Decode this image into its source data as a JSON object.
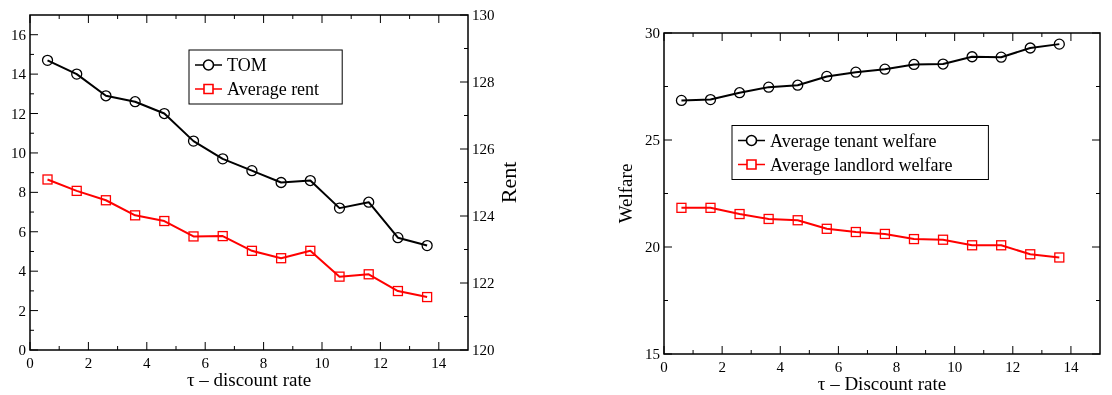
{
  "chart_data": [
    {
      "type": "line",
      "xlabel": "τ – discount rate",
      "y2label": "Rent",
      "x": [
        0.6,
        1.6,
        2.6,
        3.6,
        4.6,
        5.6,
        6.6,
        7.6,
        8.6,
        9.6,
        10.6,
        11.6,
        12.6,
        13.6
      ],
      "xlim": [
        0,
        15
      ],
      "xticks": [
        0,
        2,
        4,
        6,
        8,
        10,
        12,
        14
      ],
      "ylim": [
        0,
        17
      ],
      "yticks": [
        0,
        2,
        4,
        6,
        8,
        10,
        12,
        14,
        16
      ],
      "y2lim": [
        120,
        130
      ],
      "y2ticks": [
        120,
        122,
        124,
        126,
        128,
        130
      ],
      "legend": "top",
      "series": [
        {
          "name": "TOM",
          "color": "#000000",
          "marker": "circle",
          "values": [
            14.7,
            14.0,
            12.9,
            12.6,
            12.0,
            10.6,
            9.7,
            9.1,
            8.5,
            8.6,
            7.2,
            7.5,
            5.7,
            5.3
          ]
        },
        {
          "name": "Average rent",
          "color": "#ff0000",
          "marker": "square",
          "axis": "y2",
          "values": [
            125.09,
            124.75,
            124.47,
            124.02,
            123.85,
            123.39,
            123.4,
            122.96,
            122.74,
            122.96,
            122.19,
            122.26,
            121.76,
            121.58
          ]
        }
      ]
    },
    {
      "type": "line",
      "xlabel": "τ – Discount rate",
      "ylabel": "Welfare",
      "x": [
        0.6,
        1.6,
        2.6,
        3.6,
        4.6,
        5.6,
        6.6,
        7.6,
        8.6,
        9.6,
        10.6,
        11.6,
        12.6,
        13.6
      ],
      "xlim": [
        0,
        15
      ],
      "xticks": [
        0,
        2,
        4,
        6,
        8,
        10,
        12,
        14
      ],
      "ylim": [
        15,
        30
      ],
      "yticks": [
        15,
        20,
        25,
        30
      ],
      "legend": "center",
      "series": [
        {
          "name": "Average tenant welfare",
          "color": "#000000",
          "marker": "circle",
          "values": [
            26.85,
            26.89,
            27.21,
            27.47,
            27.56,
            27.97,
            28.17,
            28.31,
            28.53,
            28.55,
            28.89,
            28.87,
            29.3,
            29.48
          ]
        },
        {
          "name": "Average landlord welfare",
          "color": "#ff0000",
          "marker": "square",
          "values": [
            21.83,
            21.83,
            21.54,
            21.31,
            21.25,
            20.85,
            20.7,
            20.61,
            20.37,
            20.34,
            20.08,
            20.08,
            19.66,
            19.51
          ]
        }
      ]
    }
  ]
}
